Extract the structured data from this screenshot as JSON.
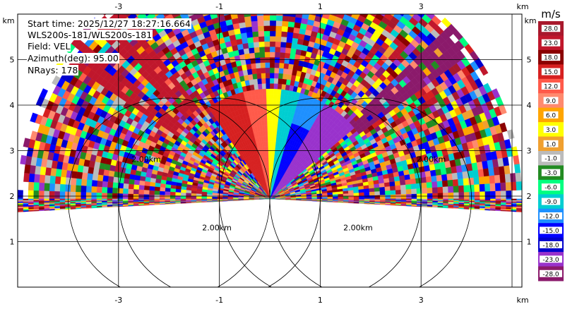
{
  "chart_data": {
    "type": "heatmap",
    "subtype": "radar-ppi-sector",
    "info": {
      "start_time": "Start time: 2025/12/27 18:27:16.664",
      "instrument": "WLS200s-181/WLS200s-181",
      "field": "Field: VEL",
      "azimuth": "Azimuth(deg): 95.00",
      "nrays": "NRays: 178"
    },
    "x_unit": "km",
    "y_unit": "km",
    "x_ticks": [
      "-3",
      "-1",
      "1",
      "3"
    ],
    "x_tick_values": [
      -3,
      -1,
      1,
      3
    ],
    "y_ticks": [
      "1",
      "2",
      "3",
      "4",
      "5"
    ],
    "y_tick_values": [
      1,
      2,
      3,
      4,
      5
    ],
    "xlim": [
      -5,
      5
    ],
    "ylim": [
      0,
      6
    ],
    "radar_origin": [
      0,
      1.94
    ],
    "max_range_km": 5.0,
    "range_ring_labels": [
      {
        "text": "2.00km",
        "x": -1.05,
        "y": 1.25
      },
      {
        "text": "2.00km",
        "x": 1.75,
        "y": 1.25
      },
      {
        "text": "2.00km",
        "x": -2.45,
        "y": 2.75
      },
      {
        "text": "2.00km",
        "x": 3.2,
        "y": 2.75
      }
    ],
    "colorbar": {
      "unit": "m/s",
      "labels": [
        "28.0",
        "23.0",
        "18.0",
        "15.0",
        "12.0",
        "9.0",
        "6.0",
        "3.0",
        "1.0",
        "-1.0",
        "-3.0",
        "-6.0",
        "-9.0",
        "-12.0",
        "-15.0",
        "-18.0",
        "-23.0",
        "-28.0"
      ],
      "colors": [
        "#a8182c",
        "#c0172c",
        "#8b0000",
        "#d62020",
        "#ff5a4a",
        "#ff8a6e",
        "#ffa500",
        "#ffff00",
        "#f0a030",
        "#bbbbbb",
        "#228b22",
        "#00ff80",
        "#00ced1",
        "#1e90ff",
        "#0000ff",
        "#0000cd",
        "#9932cc",
        "#8b1a6b"
      ]
    },
    "ray_elevation_range_deg": [
      0,
      180
    ]
  }
}
